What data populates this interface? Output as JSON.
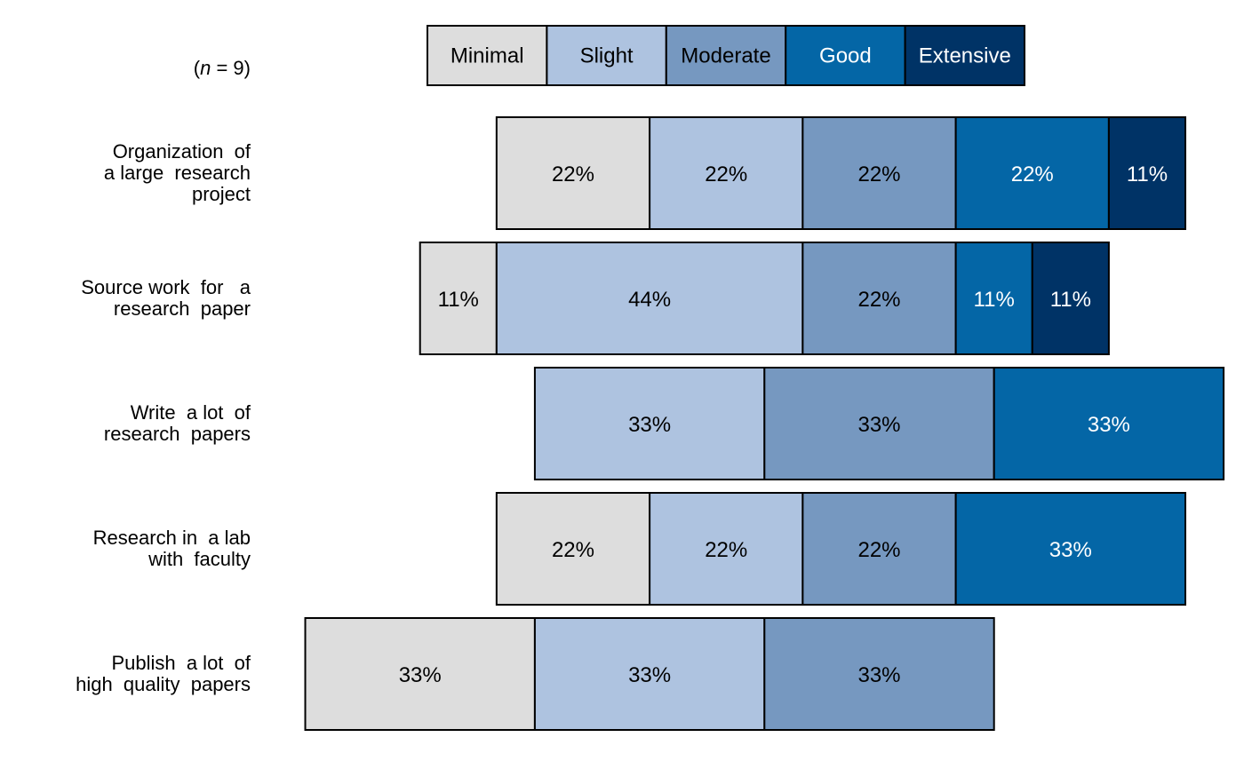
{
  "chart_data": {
    "type": "bar",
    "orientation": "horizontal",
    "stacked": "diverging",
    "sample_note": {
      "prefix": "(",
      "var": "n",
      "eq": " = ",
      "value": "9",
      "suffix": ")"
    },
    "levels": [
      "Minimal",
      "Slight",
      "Moderate",
      "Good",
      "Extensive"
    ],
    "colors": [
      "#dddddd",
      "#aec3e0",
      "#7698c0",
      "#0466a6",
      "#003366"
    ],
    "text_colors": [
      "#000000",
      "#000000",
      "#000000",
      "#ffffff",
      "#ffffff"
    ],
    "categories": [
      "Organization  of\na large  research\nproject",
      "Source work  for   a\nresearch  paper",
      "Write  a lot  of\nresearch  papers",
      "Research in  a lab\nwith  faculty",
      "Publish  a lot  of\nhigh  quality  papers"
    ],
    "series": [
      {
        "name": "Minimal",
        "values": [
          22,
          11,
          0,
          22,
          33
        ]
      },
      {
        "name": "Slight",
        "values": [
          22,
          44,
          33,
          22,
          33
        ]
      },
      {
        "name": "Moderate",
        "values": [
          22,
          22,
          33,
          22,
          33
        ]
      },
      {
        "name": "Good",
        "values": [
          22,
          11,
          33,
          33,
          0
        ]
      },
      {
        "name": "Extensive",
        "values": [
          11,
          11,
          0,
          0,
          0
        ]
      }
    ],
    "value_labels": [
      [
        "22%",
        "22%",
        "22%",
        "22%",
        "11%"
      ],
      [
        "11%",
        "44%",
        "22%",
        "11%",
        "11%"
      ],
      [
        "",
        "33%",
        "33%",
        "33%",
        ""
      ],
      [
        "22%",
        "22%",
        "22%",
        "33%",
        ""
      ],
      [
        "33%",
        "33%",
        "33%",
        "",
        ""
      ]
    ],
    "legend_position": "top",
    "grid": false
  }
}
